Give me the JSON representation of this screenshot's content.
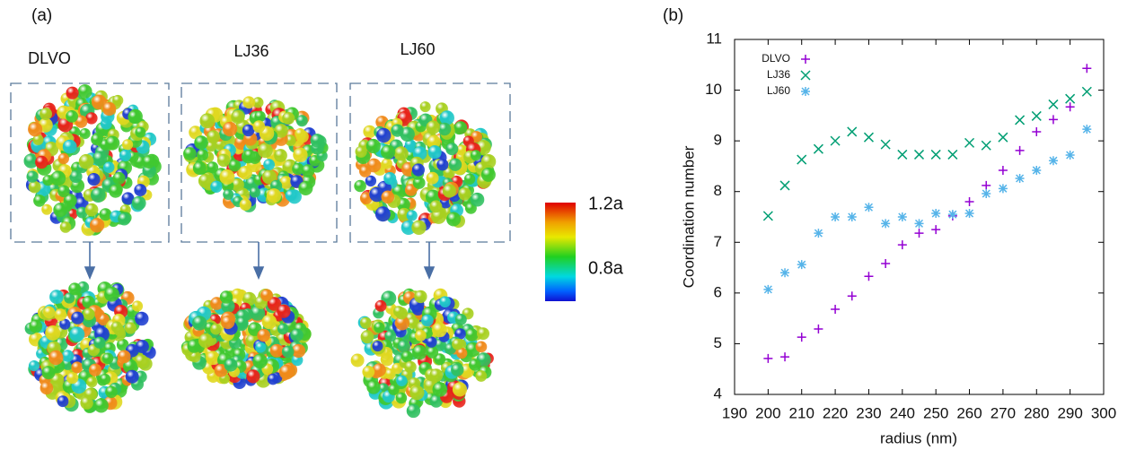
{
  "panel_a": {
    "label": "(a)",
    "titles": [
      "DLVO",
      "LJ36",
      "LJ60"
    ],
    "colorbar_labels": [
      "1.2a",
      "0.8a"
    ]
  },
  "chart_data": {
    "type": "scatter",
    "panel_label": "(b)",
    "xlabel": "radius (nm)",
    "ylabel": "Coordination number",
    "xlim": [
      190,
      300
    ],
    "xticks": [
      190,
      200,
      210,
      220,
      230,
      240,
      250,
      260,
      270,
      280,
      290,
      300
    ],
    "ylim": [
      4,
      11
    ],
    "yticks": [
      4,
      5,
      6,
      7,
      8,
      9,
      10,
      11
    ],
    "legend": "upper left",
    "x": [
      200,
      205,
      210,
      215,
      220,
      225,
      230,
      235,
      240,
      245,
      250,
      255,
      260,
      265,
      270,
      275,
      280,
      285,
      290,
      295
    ],
    "series": [
      {
        "name": "DLVO",
        "color": "#9400d3",
        "marker": "plus",
        "values": [
          4.71,
          4.74,
          5.13,
          5.29,
          5.68,
          5.94,
          6.33,
          6.58,
          6.95,
          7.18,
          7.25,
          7.52,
          7.8,
          8.12,
          8.42,
          8.81,
          9.18,
          9.42,
          9.67,
          10.43
        ]
      },
      {
        "name": "LJ36",
        "color": "#009e73",
        "marker": "cross",
        "values": [
          7.52,
          8.12,
          8.63,
          8.84,
          9.0,
          9.18,
          9.07,
          8.93,
          8.73,
          8.73,
          8.73,
          8.73,
          8.96,
          8.91,
          9.07,
          9.41,
          9.49,
          9.72,
          9.83,
          9.97
        ]
      },
      {
        "name": "LJ60",
        "color": "#56b4e9",
        "marker": "star",
        "values": [
          6.07,
          6.4,
          6.56,
          7.18,
          7.5,
          7.5,
          7.69,
          7.37,
          7.5,
          7.37,
          7.57,
          7.55,
          7.57,
          7.96,
          8.06,
          8.26,
          8.42,
          8.61,
          8.72,
          9.23
        ]
      }
    ]
  }
}
